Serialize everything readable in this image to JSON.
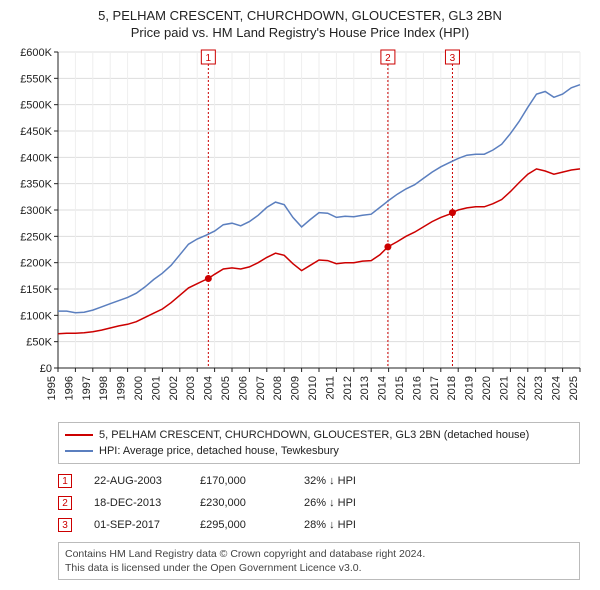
{
  "title_line1": "5, PELHAM CRESCENT, CHURCHDOWN, GLOUCESTER, GL3 2BN",
  "title_line2": "Price paid vs. HM Land Registry's House Price Index (HPI)",
  "chart": {
    "type": "line",
    "background_color": "#ffffff",
    "grid_color_major": "#dddddd",
    "grid_color_minor": "#eeeeee",
    "axis_color": "#222222",
    "y": {
      "min": 0,
      "max": 600000,
      "step": 50000,
      "tick_labels": [
        "£0",
        "£50K",
        "£100K",
        "£150K",
        "£200K",
        "£250K",
        "£300K",
        "£350K",
        "£400K",
        "£450K",
        "£500K",
        "£550K",
        "£600K"
      ],
      "label_fontsize": 11
    },
    "x": {
      "min": 1995,
      "max": 2025,
      "step": 1,
      "tick_labels": [
        "1995",
        "1996",
        "1997",
        "1998",
        "1999",
        "2000",
        "2001",
        "2002",
        "2003",
        "2004",
        "2005",
        "2006",
        "2007",
        "2008",
        "2009",
        "2010",
        "2011",
        "2012",
        "2013",
        "2014",
        "2015",
        "2016",
        "2017",
        "2018",
        "2019",
        "2020",
        "2021",
        "2022",
        "2023",
        "2024",
        "2025"
      ],
      "label_fontsize": 11
    },
    "series": [
      {
        "name": "5, PELHAM CRESCENT, CHURCHDOWN, GLOUCESTER, GL3 2BN (detached house)",
        "color": "#cc0000",
        "line_width": 1.5,
        "points": [
          [
            1995.0,
            65000
          ],
          [
            1995.5,
            66000
          ],
          [
            1996.0,
            66000
          ],
          [
            1996.5,
            67000
          ],
          [
            1997.0,
            69000
          ],
          [
            1997.5,
            72000
          ],
          [
            1998.0,
            76000
          ],
          [
            1998.5,
            80000
          ],
          [
            1999.0,
            83000
          ],
          [
            1999.5,
            88000
          ],
          [
            2000.0,
            96000
          ],
          [
            2000.5,
            104000
          ],
          [
            2001.0,
            112000
          ],
          [
            2001.5,
            124000
          ],
          [
            2002.0,
            138000
          ],
          [
            2002.5,
            152000
          ],
          [
            2003.0,
            160000
          ],
          [
            2003.5,
            168000
          ],
          [
            2003.64,
            170000
          ],
          [
            2004.0,
            178000
          ],
          [
            2004.5,
            188000
          ],
          [
            2005.0,
            190000
          ],
          [
            2005.5,
            188000
          ],
          [
            2006.0,
            192000
          ],
          [
            2006.5,
            200000
          ],
          [
            2007.0,
            210000
          ],
          [
            2007.5,
            218000
          ],
          [
            2008.0,
            214000
          ],
          [
            2008.5,
            198000
          ],
          [
            2009.0,
            185000
          ],
          [
            2009.5,
            195000
          ],
          [
            2010.0,
            205000
          ],
          [
            2010.5,
            204000
          ],
          [
            2011.0,
            198000
          ],
          [
            2011.5,
            200000
          ],
          [
            2012.0,
            200000
          ],
          [
            2012.5,
            203000
          ],
          [
            2013.0,
            204000
          ],
          [
            2013.5,
            215000
          ],
          [
            2013.96,
            230000
          ],
          [
            2014.5,
            240000
          ],
          [
            2015.0,
            250000
          ],
          [
            2015.5,
            258000
          ],
          [
            2016.0,
            268000
          ],
          [
            2016.5,
            278000
          ],
          [
            2017.0,
            286000
          ],
          [
            2017.5,
            292000
          ],
          [
            2017.67,
            295000
          ],
          [
            2018.0,
            300000
          ],
          [
            2018.5,
            304000
          ],
          [
            2019.0,
            306000
          ],
          [
            2019.5,
            306000
          ],
          [
            2020.0,
            312000
          ],
          [
            2020.5,
            320000
          ],
          [
            2021.0,
            335000
          ],
          [
            2021.5,
            352000
          ],
          [
            2022.0,
            368000
          ],
          [
            2022.5,
            378000
          ],
          [
            2023.0,
            374000
          ],
          [
            2023.5,
            368000
          ],
          [
            2024.0,
            372000
          ],
          [
            2024.5,
            376000
          ],
          [
            2025.0,
            378000
          ]
        ]
      },
      {
        "name": "HPI: Average price, detached house, Tewkesbury",
        "color": "#5b7fbf",
        "line_width": 1.5,
        "points": [
          [
            1995.0,
            108000
          ],
          [
            1995.5,
            108000
          ],
          [
            1996.0,
            105000
          ],
          [
            1996.5,
            106000
          ],
          [
            1997.0,
            110000
          ],
          [
            1997.5,
            116000
          ],
          [
            1998.0,
            122000
          ],
          [
            1998.5,
            128000
          ],
          [
            1999.0,
            134000
          ],
          [
            1999.5,
            142000
          ],
          [
            2000.0,
            154000
          ],
          [
            2000.5,
            168000
          ],
          [
            2001.0,
            180000
          ],
          [
            2001.5,
            195000
          ],
          [
            2002.0,
            215000
          ],
          [
            2002.5,
            235000
          ],
          [
            2003.0,
            245000
          ],
          [
            2003.5,
            252000
          ],
          [
            2004.0,
            260000
          ],
          [
            2004.5,
            272000
          ],
          [
            2005.0,
            275000
          ],
          [
            2005.5,
            270000
          ],
          [
            2006.0,
            278000
          ],
          [
            2006.5,
            290000
          ],
          [
            2007.0,
            305000
          ],
          [
            2007.5,
            315000
          ],
          [
            2008.0,
            310000
          ],
          [
            2008.5,
            286000
          ],
          [
            2009.0,
            268000
          ],
          [
            2009.5,
            282000
          ],
          [
            2010.0,
            295000
          ],
          [
            2010.5,
            294000
          ],
          [
            2011.0,
            286000
          ],
          [
            2011.5,
            288000
          ],
          [
            2012.0,
            287000
          ],
          [
            2012.5,
            290000
          ],
          [
            2013.0,
            292000
          ],
          [
            2013.5,
            305000
          ],
          [
            2014.0,
            318000
          ],
          [
            2014.5,
            330000
          ],
          [
            2015.0,
            340000
          ],
          [
            2015.5,
            348000
          ],
          [
            2016.0,
            360000
          ],
          [
            2016.5,
            372000
          ],
          [
            2017.0,
            382000
          ],
          [
            2017.5,
            390000
          ],
          [
            2018.0,
            398000
          ],
          [
            2018.5,
            404000
          ],
          [
            2019.0,
            406000
          ],
          [
            2019.5,
            406000
          ],
          [
            2020.0,
            414000
          ],
          [
            2020.5,
            425000
          ],
          [
            2021.0,
            445000
          ],
          [
            2021.5,
            468000
          ],
          [
            2022.0,
            495000
          ],
          [
            2022.5,
            520000
          ],
          [
            2023.0,
            525000
          ],
          [
            2023.5,
            514000
          ],
          [
            2024.0,
            520000
          ],
          [
            2024.5,
            532000
          ],
          [
            2025.0,
            538000
          ]
        ]
      }
    ],
    "sale_markers": [
      {
        "n": "1",
        "x": 2003.64,
        "y": 170000,
        "color": "#cc0000"
      },
      {
        "n": "2",
        "x": 2013.96,
        "y": 230000,
        "color": "#cc0000"
      },
      {
        "n": "3",
        "x": 2017.67,
        "y": 295000,
        "color": "#cc0000"
      }
    ]
  },
  "legend": {
    "rows": [
      {
        "color": "#cc0000",
        "label": "5, PELHAM CRESCENT, CHURCHDOWN, GLOUCESTER, GL3 2BN (detached house)"
      },
      {
        "color": "#5b7fbf",
        "label": "HPI: Average price, detached house, Tewkesbury"
      }
    ]
  },
  "sales": [
    {
      "n": "1",
      "color": "#cc0000",
      "date": "22-AUG-2003",
      "price": "£170,000",
      "diff": "32% ↓ HPI"
    },
    {
      "n": "2",
      "color": "#cc0000",
      "date": "18-DEC-2013",
      "price": "£230,000",
      "diff": "26% ↓ HPI"
    },
    {
      "n": "3",
      "color": "#cc0000",
      "date": "01-SEP-2017",
      "price": "£295,000",
      "diff": "28% ↓ HPI"
    }
  ],
  "footer_line1": "Contains HM Land Registry data © Crown copyright and database right 2024.",
  "footer_line2": "This data is licensed under the Open Government Licence v3.0."
}
